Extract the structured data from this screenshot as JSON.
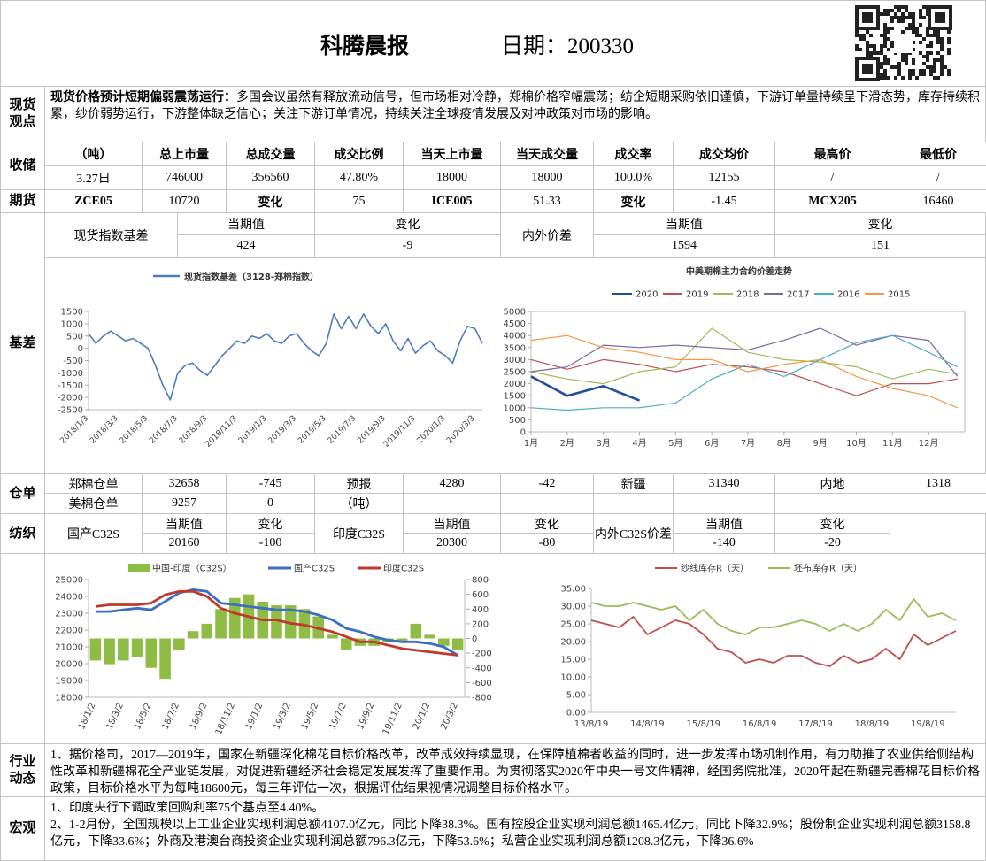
{
  "header": {
    "title": "科腾晨报",
    "date": "日期：200330"
  },
  "view": {
    "label": "现货观点",
    "lead": "现货价格预计短期偏弱震荡运行：",
    "text": "多国会议虽然有释放流动信号，但市场相对冷静，郑棉价格窄幅震荡；纺企短期采购依旧谨慎，下游订单量持续呈下滑态势，库存持续积累，纱价弱势运行，下游整体缺乏信心；关注下游订单情况，持续关注全球疫情发展及对冲政策对市场的影响。"
  },
  "storage": {
    "label": "收储",
    "header": [
      "（吨）",
      "总上市量",
      "总成交量",
      "成交比例",
      "当天上市量",
      "当天成交量",
      "成交率",
      "成交均价",
      "最高价",
      "最低价"
    ],
    "row": [
      "3.27日",
      "746000",
      "356560",
      "47.80%",
      "18000",
      "18000",
      "100.0%",
      "12155",
      "/",
      "/"
    ]
  },
  "futures": {
    "label": "期货",
    "row": [
      "ZCE05",
      "10720",
      "变化",
      "75",
      "ICE005",
      "51.33",
      "变化",
      "-1.45",
      "MCX205",
      "16460"
    ]
  },
  "basis_table": {
    "label": "现货指数基差",
    "cur_label": "当期值",
    "cur": "424",
    "chg_label": "变化",
    "chg": "-9",
    "spread_label": "内外价差",
    "spread_cur_label": "当期值",
    "spread_cur": "1594",
    "spread_chg_label": "变化",
    "spread_chg": "151"
  },
  "basis": {
    "label": "基差"
  },
  "warehouse": {
    "label": "仓单",
    "rows": [
      [
        "郑棉仓单",
        "32658",
        "-745",
        "预报",
        "4280",
        "-42",
        "新疆",
        "31340",
        "内地",
        "1318"
      ],
      [
        "美棉仓单",
        "9257",
        "0",
        "（吨）"
      ]
    ]
  },
  "textile": {
    "label": "纺织",
    "items": [
      {
        "name": "国产C32S",
        "cur_label": "当期值",
        "cur": "20160",
        "chg_label": "变化",
        "chg": "-100"
      },
      {
        "name": "印度C32S",
        "cur_label": "当期值",
        "cur": "20300",
        "chg_label": "变化",
        "chg": "-80"
      },
      {
        "name": "内外C32S价差",
        "cur_label": "当期值",
        "cur": "-140",
        "chg_label": "变化",
        "chg": "-20"
      }
    ]
  },
  "industry": {
    "label": "行业动态",
    "text": "1、据价格司，2017—2019年，国家在新疆深化棉花目标价格改革，改革成效持续显现，在保障植棉者收益的同时，进一步发挥市场机制作用，有力助推了农业供给侧结构性改革和新疆棉花全产业链发展，对促进新疆经济社会稳定发展发挥了重要作用。为贯彻落实2020年中央一号文件精神，经国务院批准，2020年起在新疆完善棉花目标价格政策，目标价格水平为每吨18600元，每三年评估一次，根据评估结果视情况调整目标价格水平。"
  },
  "macro": {
    "label": "宏观",
    "lines": [
      "1、印度央行下调政策回购利率75个基点至4.40%。",
      "2、1-2月份，全国规模以上工业企业实现利润总额4107.0亿元，同比下降38.3%。国有控股企业实现利润总额1465.4亿元，同比下降32.9%；股份制企业实现利润总额3158.8亿元，下降33.6%；外商及港澳台商投资企业实现利润总额796.3亿元，下降53.6%；私营企业实现利润总额1208.3亿元，下降36.6%"
    ]
  },
  "chart_data": [
    {
      "type": "line",
      "categories": [
        "2018/1/3",
        null,
        null,
        null,
        "2018/3/3",
        null,
        null,
        null,
        "2018/5/3",
        null,
        null,
        null,
        "2018/7/3",
        null,
        null,
        null,
        "2018/9/3",
        null,
        null,
        null,
        "2018/11/3",
        null,
        null,
        null,
        "2019/1/3",
        null,
        null,
        null,
        "2019/3/3",
        null,
        null,
        null,
        "2019/5/3",
        null,
        null,
        null,
        "2019/7/3",
        null,
        null,
        null,
        "2019/9/3",
        null,
        null,
        null,
        "2019/11/3",
        null,
        null,
        null,
        "2020/1/3",
        null,
        null,
        null,
        "2020/3/3",
        null
      ],
      "series": [
        {
          "name": "现货指数基差（3128-郑棉指数）",
          "color": "#4a7ebb",
          "values": [
            600,
            200,
            500,
            700,
            500,
            300,
            400,
            200,
            0,
            -700,
            -1500,
            -2100,
            -1000,
            -700,
            -600,
            -900,
            -1100,
            -700,
            -300,
            0,
            300,
            200,
            500,
            400,
            600,
            300,
            200,
            500,
            600,
            200,
            -100,
            -300,
            200,
            1400,
            800,
            1300,
            800,
            1400,
            900,
            600,
            1000,
            300,
            -100,
            400,
            -200,
            100,
            300,
            -100,
            -300,
            -600,
            300,
            900,
            800,
            200
          ]
        }
      ],
      "ylim": [
        -2500,
        1500
      ],
      "yticks": [
        1500,
        1000,
        500,
        0,
        -500,
        -1000,
        -1500,
        -2000,
        -2500
      ]
    },
    {
      "type": "line",
      "title": "中美期棉主力合约价差走势",
      "x": [
        1,
        2,
        3,
        4,
        5,
        6,
        7,
        8,
        9,
        10,
        11,
        12,
        12.8
      ],
      "series": [
        {
          "name": "2020",
          "color": "#1f4e9a",
          "values": [
            2300,
            1500,
            1900,
            1300,
            null,
            null,
            null,
            null,
            null,
            null,
            null,
            null,
            null
          ]
        },
        {
          "name": "2019",
          "color": "#c0504d",
          "values": [
            3000,
            2600,
            3000,
            2800,
            2500,
            2800,
            2700,
            2500,
            2000,
            1500,
            2000,
            2000,
            2200
          ]
        },
        {
          "name": "2018",
          "color": "#9bbb59",
          "values": [
            2500,
            2200,
            2000,
            2500,
            2700,
            4300,
            3300,
            3000,
            2900,
            2700,
            2200,
            2600,
            2400
          ]
        },
        {
          "name": "2017",
          "color": "#8064a2",
          "values": [
            2500,
            2700,
            3600,
            3500,
            3600,
            3500,
            3400,
            3800,
            4300,
            3600,
            4000,
            3800,
            2300
          ]
        },
        {
          "name": "2016",
          "color": "#4bacc6",
          "values": [
            1000,
            900,
            1000,
            1000,
            1200,
            2200,
            2800,
            2300,
            3000,
            3700,
            4000,
            3300,
            2700
          ]
        },
        {
          "name": "2015",
          "color": "#f79646",
          "values": [
            3800,
            4000,
            3500,
            3300,
            3000,
            3000,
            2500,
            2800,
            3000,
            2300,
            1800,
            1500,
            1000
          ]
        }
      ],
      "xlim": [
        1,
        13
      ],
      "xticks": [
        {
          "value": 1,
          "label": "1月"
        },
        {
          "value": 2,
          "label": "2月"
        },
        {
          "value": 3,
          "label": "3月"
        },
        {
          "value": 4,
          "label": "4月"
        },
        {
          "value": 5,
          "label": "5月"
        },
        {
          "value": 6,
          "label": "6月"
        },
        {
          "value": 7,
          "label": "7月"
        },
        {
          "value": 8,
          "label": "8月"
        },
        {
          "value": 9,
          "label": "9月"
        },
        {
          "value": 10,
          "label": "10月"
        },
        {
          "value": 11,
          "label": "11月"
        },
        {
          "value": 12,
          "label": "12月"
        }
      ],
      "ylim": [
        0,
        5000
      ],
      "yticks": [
        5000,
        4500,
        4000,
        3500,
        3000,
        2500,
        2000,
        1500,
        1000,
        500,
        0
      ]
    },
    {
      "type": "bar-line",
      "categories": [
        "18/1/2",
        null,
        "18/3/2",
        null,
        "18/5/2",
        null,
        "18/7/2",
        null,
        "18/9/2",
        null,
        "18/11/2",
        null,
        "19/1/2",
        null,
        "19/3/2",
        null,
        "19/5/2",
        null,
        "19/7/2",
        null,
        "19/9/2",
        null,
        "19/11/2",
        null,
        "20/1/2",
        null,
        "20/3/2"
      ],
      "series": [
        {
          "name": "中国-印度（C32S）",
          "color": "#8fbc44",
          "axis": "y2",
          "values": [
            -300,
            -350,
            -300,
            -250,
            -400,
            -550,
            -150,
            100,
            200,
            400,
            550,
            600,
            500,
            450,
            450,
            400,
            300,
            50,
            -150,
            -100,
            -100,
            -50,
            -50,
            200,
            50,
            -100,
            -150
          ]
        },
        {
          "name": "国产C32S",
          "color": "#3c6fc0",
          "values": [
            23100,
            23100,
            23200,
            23300,
            23200,
            23700,
            24200,
            24400,
            24300,
            23600,
            23500,
            23400,
            23300,
            23200,
            23200,
            23100,
            22900,
            22600,
            22100,
            21900,
            21600,
            21400,
            21300,
            21300,
            21200,
            21000,
            20500
          ]
        },
        {
          "name": "印度C32S",
          "color": "#c0392b",
          "values": [
            23400,
            23500,
            23500,
            23500,
            23600,
            24100,
            24300,
            24300,
            24000,
            23300,
            23000,
            22800,
            22600,
            22600,
            22400,
            22300,
            22100,
            21900,
            21600,
            21300,
            21300,
            21100,
            20900,
            20800,
            20700,
            20600,
            20500
          ]
        }
      ],
      "ylim": [
        18000,
        25000
      ],
      "yticks": [
        25000,
        24000,
        23000,
        22000,
        21000,
        20000,
        19000,
        18000
      ],
      "y2lim": [
        -800,
        800
      ],
      "y2ticks": [
        800,
        600,
        400,
        200,
        0,
        -200,
        -400,
        -600,
        -800
      ]
    },
    {
      "type": "line",
      "categories": [
        "13/8/19",
        null,
        null,
        null,
        "14/8/19",
        null,
        null,
        null,
        "15/8/19",
        null,
        null,
        null,
        "16/8/19",
        null,
        null,
        null,
        "17/8/19",
        null,
        null,
        null,
        "18/8/19",
        null,
        null,
        null,
        "19/8/19",
        null,
        null
      ],
      "series": [
        {
          "name": "纱线库存R（天）",
          "color": "#c0504d",
          "values": [
            26,
            25,
            24,
            27,
            22,
            24,
            26,
            25,
            22,
            18,
            17,
            14,
            15,
            14,
            16,
            16,
            14,
            13,
            16,
            14,
            15,
            18,
            15,
            22,
            19,
            21,
            23
          ]
        },
        {
          "name": "坯布库存R（天）",
          "color": "#9bbb59",
          "values": [
            31,
            30,
            30,
            31,
            30,
            29,
            30,
            26,
            29,
            25,
            23,
            22,
            24,
            24,
            25,
            26,
            25,
            23,
            25,
            23,
            25,
            29,
            26,
            32,
            27,
            28,
            26
          ]
        }
      ],
      "ylim": [
        0,
        35
      ],
      "yticks": [
        {
          "value": 35,
          "label": "35.00"
        },
        {
          "value": 30,
          "label": "30.00"
        },
        {
          "value": 25,
          "label": "25.00"
        },
        {
          "value": 20,
          "label": "20.00"
        },
        {
          "value": 15,
          "label": "15.00"
        },
        {
          "value": 10,
          "label": "10.00"
        },
        {
          "value": 5,
          "label": "5.00"
        },
        {
          "value": 0,
          "label": "0.00"
        }
      ]
    }
  ]
}
